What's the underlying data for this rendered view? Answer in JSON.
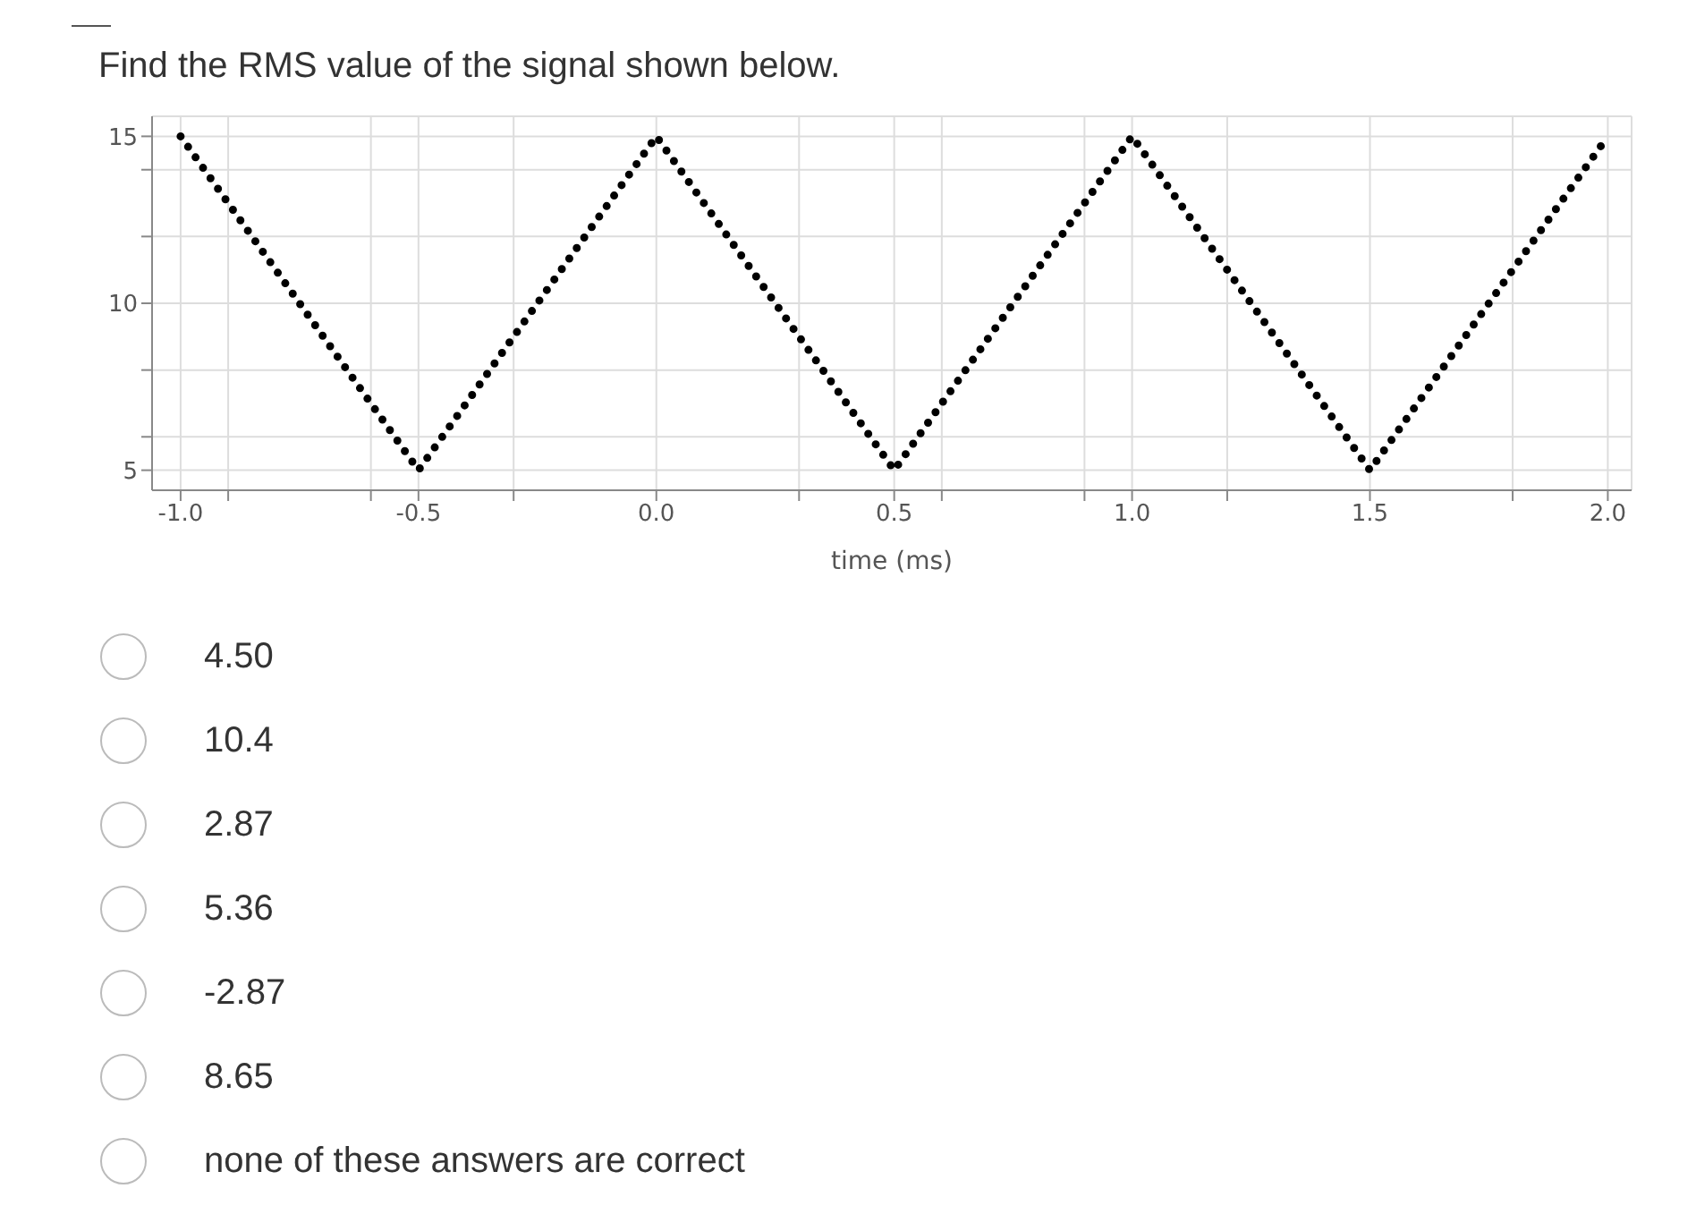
{
  "chart_data": {
    "type": "line",
    "title": "Find the RMS value of the signal shown below.",
    "xlabel": "time (ms)",
    "x": [
      -1,
      -0.5,
      0,
      0.5,
      1,
      1.5,
      2
    ],
    "series": [
      {
        "color": "#000000",
        "values": [
          15,
          5,
          15,
          5,
          15,
          5,
          15
        ]
      }
    ],
    "xlim": [
      -1.06,
      2.05
    ],
    "xticks": [
      {
        "value": -1,
        "label": "-1.0"
      },
      {
        "value": -0.9,
        "label": null
      },
      {
        "value": -0.6,
        "label": null
      },
      -0.5,
      {
        "value": -0.3,
        "label": null
      },
      {
        "value": 0,
        "label": "0.0"
      },
      {
        "value": 0.3,
        "label": null
      },
      0.5,
      {
        "value": 0.6,
        "label": null
      },
      {
        "value": 0.9,
        "label": null
      },
      {
        "value": 1,
        "label": "1.0"
      },
      {
        "value": 1.2,
        "label": null
      },
      1.5,
      {
        "value": 1.8,
        "label": null
      },
      {
        "value": 2,
        "label": "2.0"
      }
    ],
    "ylim": [
      4.4,
      15.6
    ],
    "yticks": [
      5,
      {
        "value": 6,
        "label": null
      },
      {
        "value": 8,
        "label": null
      },
      10,
      {
        "value": 12,
        "label": null
      },
      {
        "value": 14,
        "label": null
      },
      15
    ],
    "grid": true,
    "marker": "none",
    "line_style": "dotted",
    "annotations": [
      "4.50",
      "10.4",
      "2.87",
      "5.36",
      "-2.87",
      "8.65",
      "none of these answers are correct"
    ]
  }
}
